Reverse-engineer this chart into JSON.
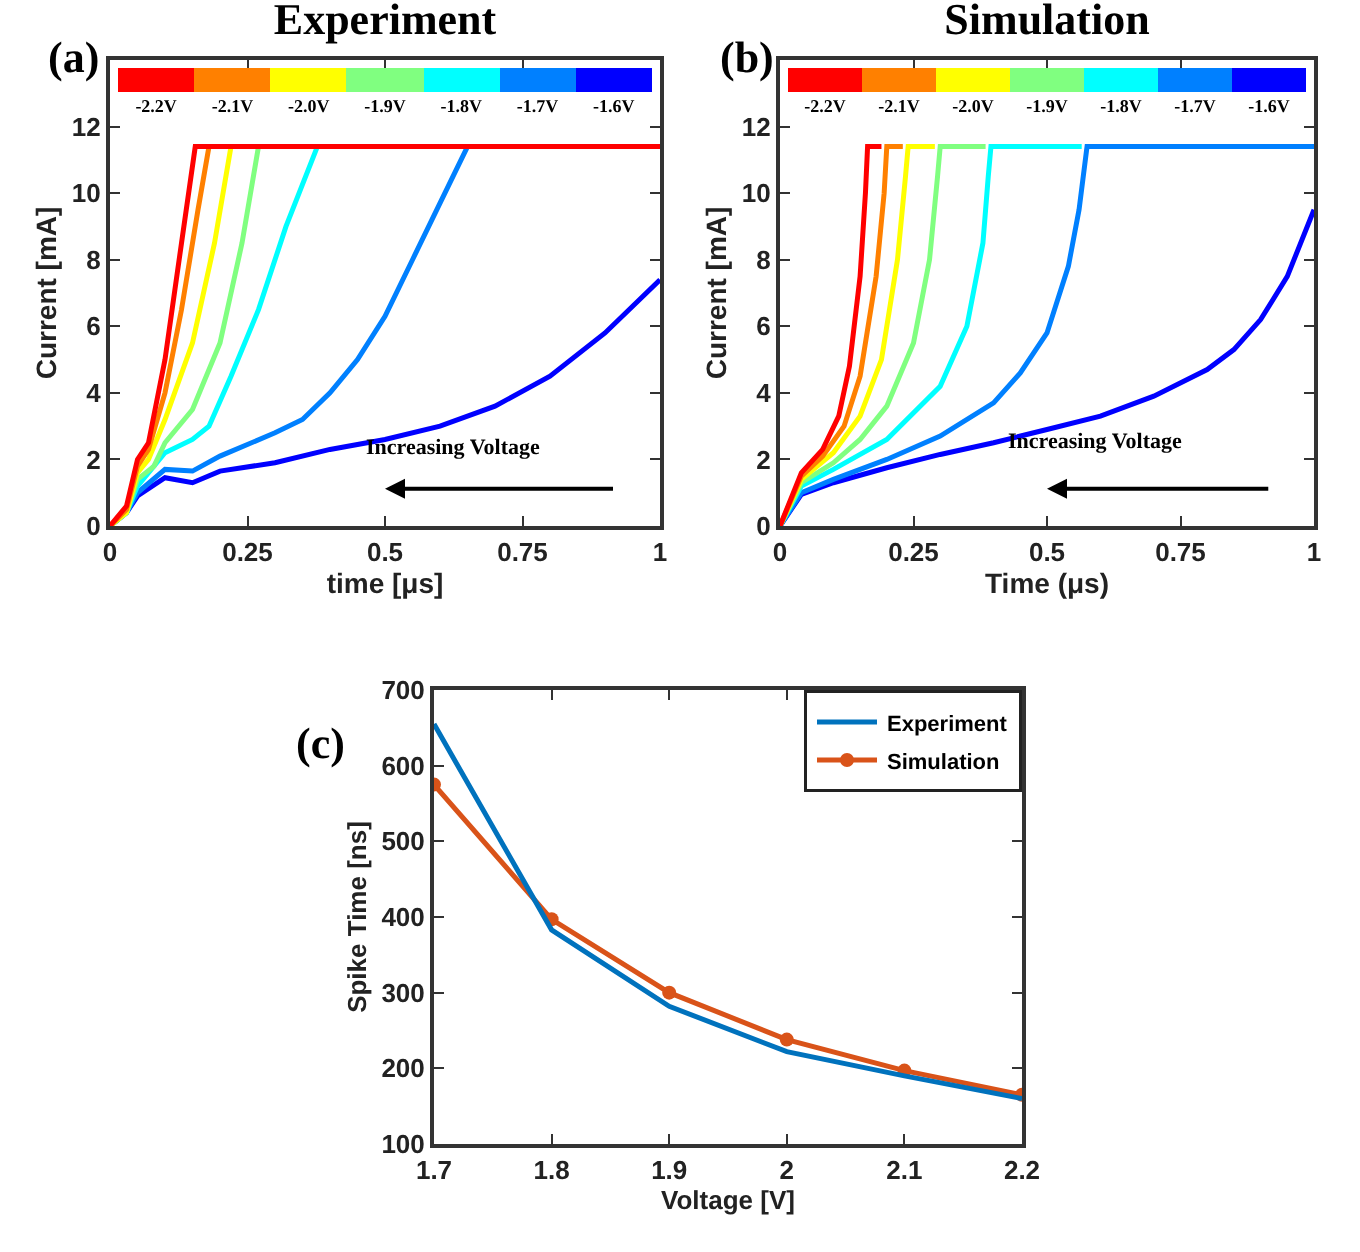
{
  "chart_data": [
    {
      "type": "line",
      "title": "Experiment",
      "xlabel": "time [μs]",
      "ylabel": "Current [mA]",
      "annotations": [
        "(a)",
        "Increasing Voltage"
      ],
      "xlim": [
        0,
        1
      ],
      "ylim": [
        0,
        14
      ],
      "xticks": [
        0,
        0.25,
        0.5,
        0.75,
        1
      ],
      "yticks": [
        0,
        2,
        4,
        6,
        8,
        10,
        12
      ],
      "grid": false,
      "legend": "top",
      "line_style": "solid",
      "marker": "none",
      "series": [
        {
          "name": "-2.2V",
          "color": "#ff0000",
          "x": [
            0,
            0.03,
            0.05,
            0.07,
            0.1,
            0.13,
            0.155,
            1
          ],
          "values": [
            0,
            0.6,
            2.0,
            2.5,
            5,
            8.5,
            11.4,
            11.4
          ]
        },
        {
          "name": "-2.1V",
          "color": "#ff8000",
          "x": [
            0,
            0.03,
            0.05,
            0.07,
            0.1,
            0.13,
            0.16,
            0.18
          ],
          "values": [
            0,
            0.5,
            1.8,
            2.3,
            4,
            6.5,
            9.5,
            11.4
          ]
        },
        {
          "name": "-2.0V",
          "color": "#ffff00",
          "x": [
            0,
            0.03,
            0.05,
            0.07,
            0.1,
            0.15,
            0.19,
            0.22
          ],
          "values": [
            0,
            0.4,
            1.6,
            2.0,
            3.2,
            5.5,
            8.5,
            11.4
          ]
        },
        {
          "name": "-1.9V",
          "color": "#80ff80",
          "x": [
            0,
            0.03,
            0.05,
            0.08,
            0.1,
            0.15,
            0.2,
            0.24,
            0.27
          ],
          "values": [
            0,
            0.4,
            1.4,
            1.8,
            2.5,
            3.5,
            5.5,
            8.5,
            11.4
          ]
        },
        {
          "name": "-1.8V",
          "color": "#00ffff",
          "x": [
            0,
            0.03,
            0.05,
            0.1,
            0.15,
            0.18,
            0.22,
            0.27,
            0.32,
            0.377
          ],
          "values": [
            0,
            0.4,
            1.2,
            2.2,
            2.6,
            3,
            4.5,
            6.5,
            9,
            11.4
          ]
        },
        {
          "name": "-1.7V",
          "color": "#0080ff",
          "x": [
            0,
            0.03,
            0.05,
            0.1,
            0.15,
            0.2,
            0.3,
            0.35,
            0.4,
            0.45,
            0.5,
            0.55,
            0.6,
            0.65
          ],
          "values": [
            0,
            0.4,
            1.0,
            1.7,
            1.65,
            2.1,
            2.8,
            3.2,
            4,
            5,
            6.3,
            8,
            9.7,
            11.4
          ]
        },
        {
          "name": "-1.6V",
          "color": "#0000ff",
          "x": [
            0,
            0.03,
            0.05,
            0.1,
            0.15,
            0.2,
            0.3,
            0.4,
            0.5,
            0.6,
            0.7,
            0.8,
            0.9,
            1
          ],
          "values": [
            0,
            0.4,
            0.9,
            1.45,
            1.3,
            1.65,
            1.9,
            2.3,
            2.6,
            3,
            3.6,
            4.5,
            5.8,
            7.4
          ]
        }
      ]
    },
    {
      "type": "line",
      "title": "Simulation",
      "xlabel": "Time (μs)",
      "ylabel": "Current [mA]",
      "annotations": [
        "(b)",
        "Increasing Voltage"
      ],
      "xlim": [
        0,
        1
      ],
      "ylim": [
        0,
        14
      ],
      "xticks": [
        0,
        0.25,
        0.5,
        0.75,
        1
      ],
      "yticks": [
        0,
        2,
        4,
        6,
        8,
        10,
        12
      ],
      "grid": false,
      "legend": "top",
      "line_style": "solid",
      "marker": "none",
      "series": [
        {
          "name": "-2.2V",
          "color": "#ff0000",
          "x": [
            0,
            0.04,
            0.08,
            0.11,
            0.13,
            0.15,
            0.16,
            0.164,
            0.19
          ],
          "values": [
            0,
            1.6,
            2.3,
            3.3,
            4.8,
            7.5,
            10,
            11.4,
            11.4
          ]
        },
        {
          "name": "-2.1V",
          "color": "#ff8000",
          "x": [
            0,
            0.04,
            0.08,
            0.12,
            0.15,
            0.18,
            0.195,
            0.2,
            0.23
          ],
          "values": [
            0,
            1.5,
            2.1,
            3,
            4.5,
            7.5,
            10,
            11.4,
            11.4
          ]
        },
        {
          "name": "-2.0V",
          "color": "#ffff00",
          "x": [
            0,
            0.04,
            0.1,
            0.15,
            0.19,
            0.22,
            0.235,
            0.24,
            0.29
          ],
          "values": [
            0,
            1.4,
            2.2,
            3.3,
            5,
            8,
            10.5,
            11.4,
            11.4
          ]
        },
        {
          "name": "-1.9V",
          "color": "#80ff80",
          "x": [
            0,
            0.04,
            0.1,
            0.15,
            0.2,
            0.25,
            0.28,
            0.295,
            0.3,
            0.385
          ],
          "values": [
            0,
            1.3,
            1.9,
            2.6,
            3.6,
            5.5,
            8,
            10.5,
            11.4,
            11.4
          ]
        },
        {
          "name": "-1.8V",
          "color": "#00ffff",
          "x": [
            0,
            0.04,
            0.1,
            0.2,
            0.3,
            0.35,
            0.38,
            0.39,
            0.395,
            0.565
          ],
          "values": [
            0,
            1.2,
            1.7,
            2.6,
            4.2,
            6,
            8.5,
            10.5,
            11.4,
            11.4
          ]
        },
        {
          "name": "-1.7V",
          "color": "#0080ff",
          "x": [
            0,
            0.04,
            0.1,
            0.2,
            0.3,
            0.4,
            0.45,
            0.5,
            0.54,
            0.56,
            0.575,
            1
          ],
          "values": [
            0,
            1.0,
            1.4,
            2.0,
            2.7,
            3.7,
            4.6,
            5.8,
            7.8,
            9.5,
            11.4,
            11.4
          ]
        },
        {
          "name": "-1.6V",
          "color": "#0000ff",
          "x": [
            0,
            0.04,
            0.1,
            0.2,
            0.3,
            0.4,
            0.5,
            0.6,
            0.7,
            0.8,
            0.85,
            0.9,
            0.95,
            1
          ],
          "values": [
            0,
            0.95,
            1.3,
            1.75,
            2.15,
            2.5,
            2.9,
            3.3,
            3.9,
            4.7,
            5.3,
            6.2,
            7.5,
            9.5
          ]
        }
      ]
    },
    {
      "type": "line",
      "xlabel": "Voltage [V]",
      "ylabel": "Spike Time [ns]",
      "annotations": [
        "(c)"
      ],
      "x": [
        1.7,
        1.8,
        1.9,
        2,
        2.1,
        2.2
      ],
      "xlim": [
        1.7,
        2.2
      ],
      "ylim": [
        100,
        700
      ],
      "xticks": [
        1.7,
        1.8,
        1.9,
        2,
        2.1,
        2.2
      ],
      "yticks": [
        100,
        200,
        300,
        400,
        500,
        600,
        700
      ],
      "grid": false,
      "legend": "top right",
      "line_style": "solid",
      "series": [
        {
          "name": "Experiment",
          "color": "#0072bd",
          "marker": "none",
          "values": [
            655,
            383,
            282,
            222,
            190,
            160
          ]
        },
        {
          "name": "Simulation",
          "color": "#d95319",
          "marker": "circle",
          "values": [
            575,
            397,
            300,
            238,
            197,
            165
          ]
        }
      ]
    }
  ]
}
